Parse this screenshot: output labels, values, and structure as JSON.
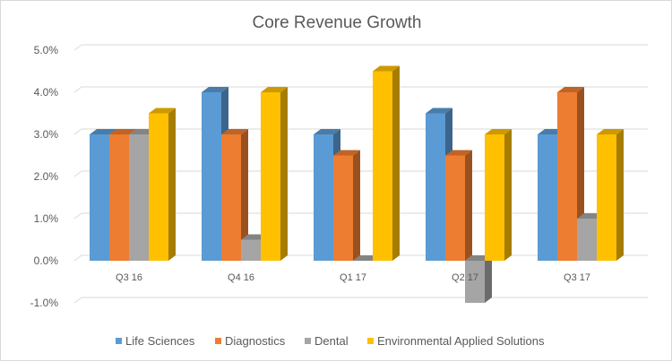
{
  "chart_data": {
    "type": "bar",
    "style": "3d-clustered-column",
    "title": "Core Revenue Growth",
    "categories": [
      "Q3 16",
      "Q4 16",
      "Q1 17",
      "Q2 17",
      "Q3 17"
    ],
    "series": [
      {
        "name": "Life Sciences",
        "color": "#5b9bd5",
        "values": [
          3.0,
          4.0,
          3.0,
          3.5,
          3.0
        ]
      },
      {
        "name": "Diagnostics",
        "color": "#ed7d31",
        "values": [
          3.0,
          3.0,
          2.5,
          2.5,
          4.0
        ]
      },
      {
        "name": "Dental",
        "color": "#a5a5a5",
        "values": [
          3.0,
          0.5,
          0.0,
          -1.0,
          1.0
        ]
      },
      {
        "name": "Environmental  Applied Solutions",
        "color": "#ffc000",
        "values": [
          3.5,
          4.0,
          4.5,
          3.0,
          3.0
        ]
      }
    ],
    "yticks": [
      "-1.0%",
      "0.0%",
      "1.0%",
      "2.0%",
      "3.0%",
      "4.0%",
      "5.0%"
    ],
    "ylim": [
      -1,
      5
    ],
    "grid": true,
    "legend": "bottom"
  }
}
